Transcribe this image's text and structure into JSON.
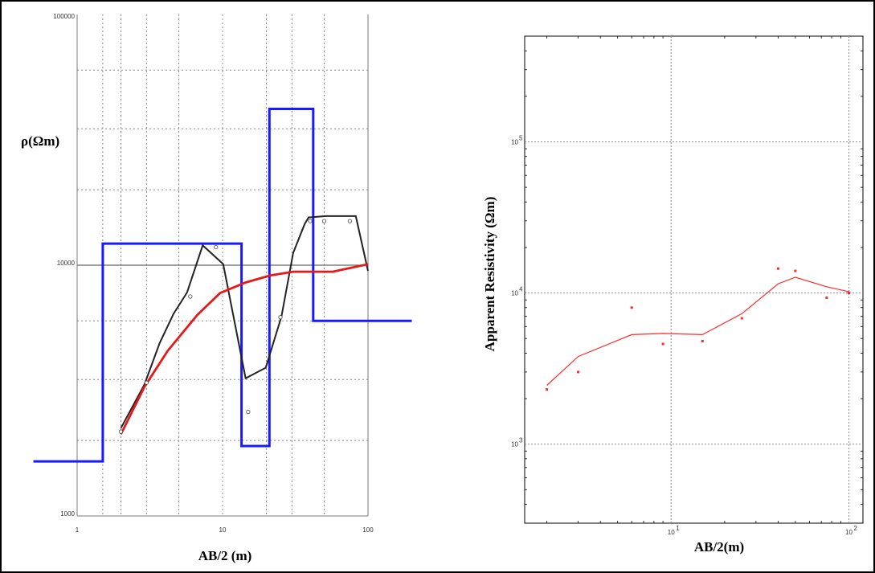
{
  "chart_data": [
    {
      "type": "line",
      "title": "",
      "xlabel": "AB/2 (m)",
      "ylabel": "ρ(Ωm)",
      "x_scale": "log",
      "y_scale": "log",
      "xlim": [
        1,
        100
      ],
      "ylim": [
        1000,
        100000
      ],
      "xticks": [
        "1",
        "10",
        "100"
      ],
      "yticks": [
        "1000",
        "10000",
        "100000"
      ],
      "grid": true,
      "series": [
        {
          "color": "#1a1aff",
          "style": "step",
          "x": [
            0.5,
            1.5,
            1.5,
            13.5,
            13.5,
            21,
            21,
            42,
            42,
            200
          ],
          "y": [
            1650,
            1650,
            12200,
            12200,
            1900,
            1900,
            42000,
            42000,
            6000,
            6000
          ]
        },
        {
          "color": "#222222",
          "style": "line",
          "x": [
            2,
            2.9,
            3.7,
            4.6,
            5.7,
            7.3,
            10.1,
            14.4,
            19.8,
            25.4,
            30.6,
            36.7,
            39,
            51,
            82.4,
            100
          ],
          "y": [
            2240,
            3340,
            4900,
            6400,
            7780,
            12000,
            10100,
            3540,
            3900,
            6240,
            11200,
            14600,
            15500,
            15700,
            15700,
            9500
          ]
        },
        {
          "color": "#e81818",
          "style": "line",
          "x": [
            2,
            2.9,
            4.2,
            6.7,
            9.6,
            14.4,
            21.3,
            30.5,
            42.4,
            57.1,
            100
          ],
          "y": [
            2120,
            3270,
            4560,
            6330,
            7740,
            8530,
            9100,
            9420,
            9420,
            9420,
            10100
          ]
        },
        {
          "color": "#444444",
          "style": "markers",
          "x": [
            2,
            3,
            6,
            9,
            15,
            25,
            40,
            50,
            75
          ],
          "y": [
            2170,
            3400,
            7500,
            11800,
            2600,
            6200,
            15000,
            15000,
            15000
          ]
        }
      ]
    },
    {
      "type": "scatter",
      "title": "",
      "xlabel": "AB/2(m)",
      "ylabel": "Apparent Resistivity (Ωm)",
      "x_scale": "log",
      "y_scale": "log",
      "xlim": [
        1.5,
        120
      ],
      "ylim": [
        300,
        500000
      ],
      "xticks": [
        {
          "base": "10",
          "exp": "1",
          "value": 10
        },
        {
          "base": "10",
          "exp": "2",
          "value": 100
        }
      ],
      "yticks": [
        {
          "base": "10",
          "exp": "3",
          "value": 1000
        },
        {
          "base": "10",
          "exp": "4",
          "value": 10000
        },
        {
          "base": "10",
          "exp": "5",
          "value": 100000
        }
      ],
      "grid": true,
      "series": [
        {
          "color": "#ff2a2a",
          "style": "markers",
          "x": [
            2,
            3,
            6,
            9,
            15,
            25,
            40,
            50,
            75,
            100
          ],
          "y": [
            2300,
            3000,
            8000,
            4600,
            4800,
            6800,
            14500,
            14000,
            9300,
            10000
          ]
        },
        {
          "color": "#ff2a2a",
          "style": "line",
          "x": [
            2,
            3,
            6,
            9,
            15,
            25,
            40,
            50,
            75,
            100
          ],
          "y": [
            2450,
            3800,
            5300,
            5400,
            5300,
            7300,
            11500,
            12700,
            11000,
            10200
          ]
        }
      ]
    }
  ]
}
